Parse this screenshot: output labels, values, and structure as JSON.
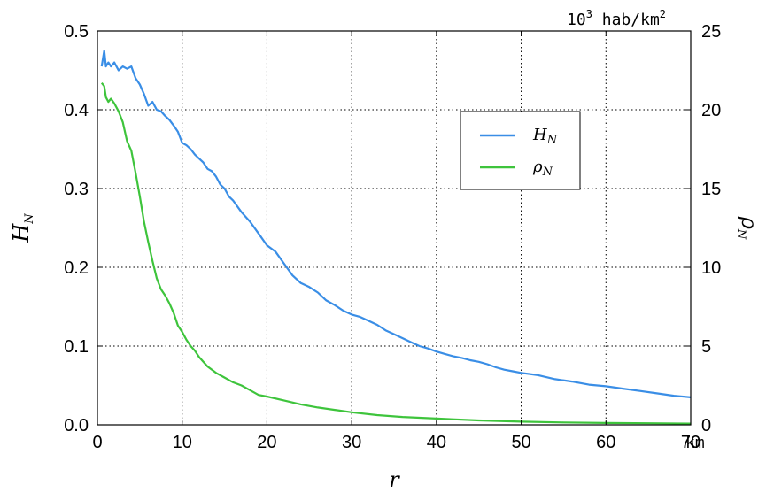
{
  "chart_data": {
    "type": "line",
    "title": "",
    "xlabel": "r",
    "x_unit": "km",
    "ylabel_left": {
      "main": "H",
      "sub": "N"
    },
    "ylabel_right": {
      "main": "ρ",
      "sub": "N"
    },
    "right_unit": {
      "base": "10",
      "exp": "3",
      "mid": " hab/km",
      "exp2": "2"
    },
    "xlim": [
      0,
      70
    ],
    "ylim_left": [
      0,
      0.5
    ],
    "ylim_right": [
      0,
      25
    ],
    "x_ticks": [
      "0",
      "10",
      "20",
      "30",
      "40",
      "50",
      "60",
      "70"
    ],
    "y_left_ticks": [
      "0.0",
      "0.1",
      "0.2",
      "0.3",
      "0.4",
      "0.5"
    ],
    "y_right_ticks": [
      "0",
      "5",
      "10",
      "15",
      "20",
      "25"
    ],
    "grid": true,
    "legend_position": "upper-right",
    "series": [
      {
        "name": {
          "main": "H",
          "sub": "N"
        },
        "axis": "left",
        "color": "#3a8ee6",
        "x": [
          0.5,
          0.8,
          1,
          1.3,
          1.6,
          2,
          2.5,
          3,
          3.5,
          4,
          4.5,
          5,
          5.5,
          6,
          6.5,
          7,
          7.5,
          8,
          8.5,
          9,
          9.5,
          10,
          10.5,
          11,
          11.5,
          12,
          12.5,
          13,
          13.5,
          14,
          14.5,
          15,
          15.5,
          16,
          17,
          18,
          19,
          20,
          21,
          22,
          23,
          24,
          25,
          26,
          27,
          28,
          29,
          30,
          31,
          32,
          33,
          34,
          35,
          36,
          37,
          38,
          39,
          40,
          41,
          42,
          43,
          44,
          45,
          46,
          47,
          48,
          49,
          50,
          52,
          54,
          56,
          58,
          60,
          62,
          64,
          66,
          68,
          70
        ],
        "y": [
          0.455,
          0.475,
          0.455,
          0.46,
          0.455,
          0.46,
          0.45,
          0.455,
          0.452,
          0.455,
          0.44,
          0.432,
          0.42,
          0.405,
          0.41,
          0.4,
          0.398,
          0.392,
          0.387,
          0.38,
          0.372,
          0.358,
          0.355,
          0.35,
          0.343,
          0.338,
          0.333,
          0.325,
          0.322,
          0.315,
          0.305,
          0.3,
          0.29,
          0.285,
          0.27,
          0.258,
          0.243,
          0.228,
          0.22,
          0.205,
          0.19,
          0.18,
          0.175,
          0.168,
          0.158,
          0.152,
          0.145,
          0.14,
          0.137,
          0.132,
          0.127,
          0.12,
          0.115,
          0.11,
          0.105,
          0.1,
          0.097,
          0.093,
          0.09,
          0.087,
          0.085,
          0.082,
          0.08,
          0.077,
          0.073,
          0.07,
          0.068,
          0.066,
          0.063,
          0.058,
          0.055,
          0.051,
          0.049,
          0.046,
          0.043,
          0.04,
          0.037,
          0.035
        ]
      },
      {
        "name": {
          "main": "ρ",
          "sub": "N"
        },
        "axis": "right",
        "color": "#3ec43c",
        "x": [
          0.5,
          0.8,
          1,
          1.3,
          1.6,
          2,
          2.5,
          3,
          3.5,
          4,
          4.5,
          5,
          5.5,
          6,
          6.5,
          7,
          7.5,
          8,
          8.5,
          9,
          9.5,
          10,
          10.5,
          11,
          11.5,
          12,
          13,
          14,
          15,
          16,
          17,
          18,
          19,
          20,
          22,
          24,
          26,
          28,
          30,
          33,
          36,
          40,
          45,
          50,
          55,
          60,
          65,
          70
        ],
        "y": [
          21.7,
          21.5,
          20.8,
          20.5,
          20.7,
          20.4,
          19.9,
          19.2,
          18.0,
          17.4,
          16.0,
          14.5,
          12.9,
          11.6,
          10.4,
          9.3,
          8.6,
          8.2,
          7.7,
          7.1,
          6.3,
          5.9,
          5.4,
          5.0,
          4.7,
          4.3,
          3.7,
          3.3,
          3.0,
          2.7,
          2.5,
          2.2,
          1.9,
          1.8,
          1.55,
          1.3,
          1.1,
          0.95,
          0.8,
          0.62,
          0.5,
          0.4,
          0.28,
          0.2,
          0.15,
          0.12,
          0.1,
          0.08
        ]
      }
    ]
  }
}
